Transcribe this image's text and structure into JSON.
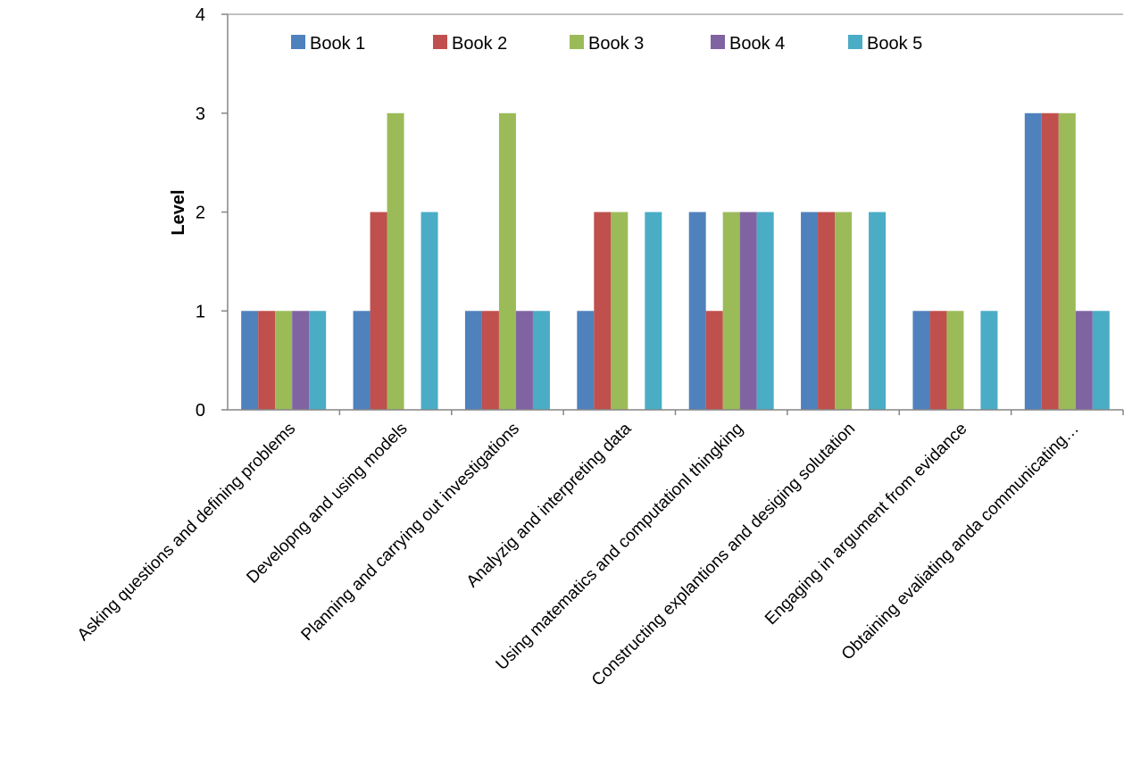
{
  "chart_data": {
    "type": "bar",
    "title": "",
    "xlabel": "",
    "ylabel": "Level",
    "ylim": [
      0,
      4
    ],
    "yticks": [
      0,
      1,
      2,
      3,
      4
    ],
    "grid": false,
    "legend_position": "top",
    "categories": [
      "Asking questions and defining problems",
      "Developng and using models",
      "Planning and carrying out investigations",
      "Analyzig and interpreting data",
      "Using matematics and computationl thingking",
      "Constructing explantions and desiging solutation",
      "Engaging in argument from evidance",
      "Obtaining evaliating anda communicating…"
    ],
    "series": [
      {
        "name": "Book 1",
        "color": "#4F81BD",
        "values": [
          1,
          1,
          1,
          1,
          2,
          2,
          1,
          3
        ]
      },
      {
        "name": "Book 2",
        "color": "#C0504D",
        "values": [
          1,
          2,
          1,
          2,
          1,
          2,
          1,
          3
        ]
      },
      {
        "name": "Book 3",
        "color": "#9BBB59",
        "values": [
          1,
          3,
          3,
          2,
          2,
          2,
          1,
          3
        ]
      },
      {
        "name": "Book 4",
        "color": "#8064A2",
        "values": [
          1,
          0,
          1,
          0,
          2,
          0,
          0,
          1
        ]
      },
      {
        "name": "Book 5",
        "color": "#4BACC6",
        "values": [
          1,
          2,
          1,
          2,
          2,
          2,
          1,
          1
        ]
      }
    ]
  }
}
